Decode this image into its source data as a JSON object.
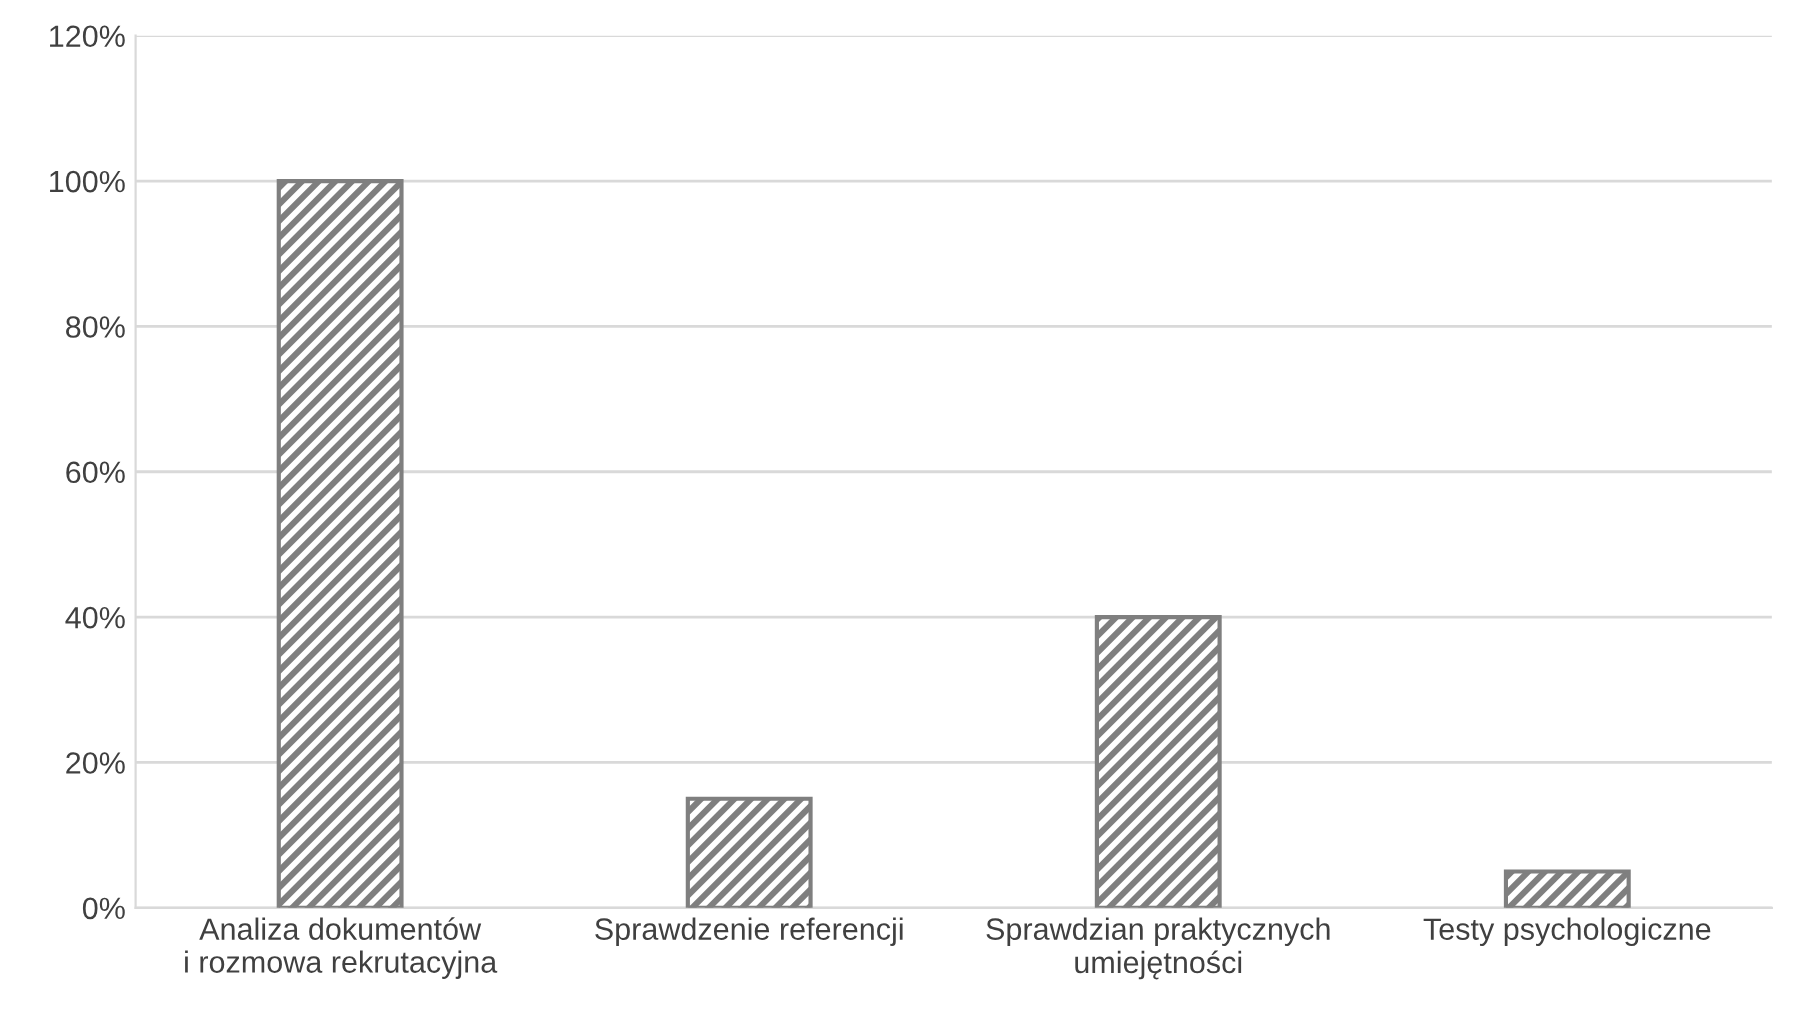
{
  "chart_data": {
    "type": "bar",
    "categories": [
      "Analiza dokumentów\ni rozmowa rekrutacyjna",
      "Sprawdzenie referencji",
      "Sprawdzian praktycznych\numiejętności",
      "Testy psychologiczne"
    ],
    "values": [
      100,
      15,
      40,
      5
    ],
    "color": "#7f7f7f",
    "ylim": [
      0,
      120
    ],
    "yticks": [
      {
        "value": 0,
        "label": "0%"
      },
      {
        "value": 20,
        "label": "20%"
      },
      {
        "value": 40,
        "label": "40%"
      },
      {
        "value": 60,
        "label": "60%"
      },
      {
        "value": 80,
        "label": "80%"
      },
      {
        "value": 100,
        "label": "100%"
      },
      {
        "value": 120,
        "label": "120%"
      }
    ],
    "grid": "y"
  }
}
